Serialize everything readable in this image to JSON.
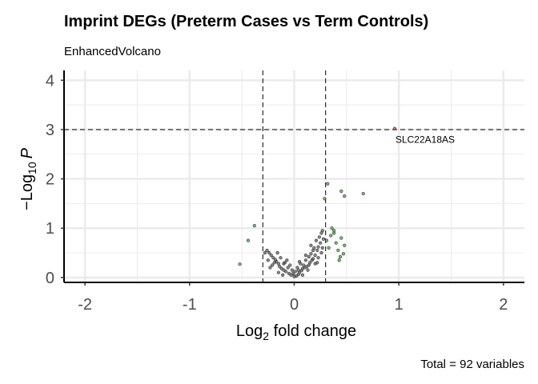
{
  "chart_data": {
    "type": "scatter",
    "title": "Imprint DEGs (Preterm Cases vs Term Controls)",
    "subtitle": "EnhancedVolcano",
    "caption": "Total = 92 variables",
    "xlabel": {
      "prefix": "Log",
      "sub": "2",
      "suffix": " fold change"
    },
    "ylabel": {
      "prefix": "−Log",
      "sub": "10",
      "suffix": "P"
    },
    "xlim": [
      -2.2,
      2.2
    ],
    "ylim": [
      -0.1,
      4.2
    ],
    "x_ticks": [
      -2,
      -1,
      0,
      1,
      2
    ],
    "y_ticks": [
      0,
      1,
      2,
      3,
      4
    ],
    "grid": true,
    "fc_cutoff": 0.3,
    "p_cutoff_log10": 3.0,
    "colors": {
      "ns": "#5a5a5a",
      "log2fc": "#3aa63a",
      "p_and_log2fc": "#e03b3b",
      "cutoff_line": "#000000",
      "grid": "#ebebeb"
    },
    "series": [
      {
        "category": "ns",
        "points": [
          [
            -0.03,
            0.05
          ],
          [
            0.0,
            0.02
          ],
          [
            0.02,
            0.03
          ],
          [
            0.04,
            0.06
          ],
          [
            -0.05,
            0.08
          ],
          [
            0.05,
            0.1
          ],
          [
            -0.08,
            0.12
          ],
          [
            0.07,
            0.14
          ],
          [
            -0.1,
            0.15
          ],
          [
            0.08,
            0.18
          ],
          [
            -0.12,
            0.18
          ],
          [
            0.1,
            0.2
          ],
          [
            -0.14,
            0.22
          ],
          [
            0.12,
            0.22
          ],
          [
            -0.15,
            0.28
          ],
          [
            0.14,
            0.25
          ],
          [
            -0.17,
            0.32
          ],
          [
            0.15,
            0.3
          ],
          [
            -0.18,
            0.36
          ],
          [
            0.17,
            0.35
          ],
          [
            -0.2,
            0.4
          ],
          [
            0.18,
            0.38
          ],
          [
            -0.22,
            0.45
          ],
          [
            0.2,
            0.45
          ],
          [
            -0.24,
            0.5
          ],
          [
            0.22,
            0.55
          ],
          [
            -0.26,
            0.55
          ],
          [
            0.23,
            0.62
          ],
          [
            -0.28,
            0.5
          ],
          [
            0.25,
            0.7
          ],
          [
            -0.06,
            0.2
          ],
          [
            0.06,
            0.28
          ],
          [
            -0.09,
            0.3
          ],
          [
            0.09,
            0.25
          ],
          [
            -0.13,
            0.4
          ],
          [
            0.11,
            0.35
          ],
          [
            -0.16,
            0.5
          ],
          [
            0.16,
            0.48
          ],
          [
            -0.19,
            0.3
          ],
          [
            0.19,
            0.6
          ],
          [
            -0.21,
            0.25
          ],
          [
            0.21,
            0.75
          ],
          [
            0.24,
            0.82
          ],
          [
            0.26,
            0.9
          ],
          [
            0.27,
            0.6
          ],
          [
            -0.11,
            0.05
          ],
          [
            0.01,
            0.12
          ],
          [
            0.03,
            0.2
          ],
          [
            -0.02,
            0.15
          ],
          [
            -0.07,
            0.35
          ],
          [
            0.13,
            0.15
          ],
          [
            0.28,
            0.78
          ],
          [
            -0.25,
            0.35
          ],
          [
            0.2,
            0.28
          ],
          [
            -0.04,
            0.25
          ],
          [
            0.14,
            0.42
          ],
          [
            -0.23,
            0.2
          ],
          [
            0.26,
            0.5
          ],
          [
            0.08,
            0.05
          ],
          [
            0.18,
            0.55
          ],
          [
            0.05,
            0.32
          ],
          [
            -0.15,
            0.1
          ],
          [
            0.11,
            0.45
          ],
          [
            0.23,
            0.4
          ],
          [
            -0.01,
            0.08
          ],
          [
            0.16,
            0.65
          ],
          [
            -0.1,
            0.28
          ],
          [
            0.04,
            0.15
          ],
          [
            0.27,
            0.95
          ],
          [
            0.22,
            0.3
          ]
        ]
      },
      {
        "category": "log2fc",
        "points": [
          [
            -0.52,
            0.27
          ],
          [
            -0.44,
            0.75
          ],
          [
            -0.38,
            1.05
          ],
          [
            0.32,
            1.9
          ],
          [
            0.29,
            1.6
          ],
          [
            0.35,
            0.85
          ],
          [
            0.38,
            0.9
          ],
          [
            0.38,
            0.95
          ],
          [
            0.4,
            0.7
          ],
          [
            0.42,
            0.55
          ],
          [
            0.45,
            0.8
          ],
          [
            0.45,
            1.75
          ],
          [
            0.48,
            1.65
          ],
          [
            0.48,
            0.65
          ],
          [
            0.66,
            1.7
          ],
          [
            0.43,
            0.35
          ],
          [
            0.47,
            0.48
          ],
          [
            0.33,
            0.6
          ],
          [
            0.31,
            0.75
          ],
          [
            0.36,
            1.0
          ],
          [
            0.44,
            0.42
          ]
        ]
      },
      {
        "category": "p_and_log2fc",
        "points": [
          [
            0.96,
            3.02
          ]
        ]
      }
    ],
    "annotations": [
      {
        "text": "SLC22A18AS",
        "x": 0.96,
        "y": 3.02
      }
    ]
  }
}
